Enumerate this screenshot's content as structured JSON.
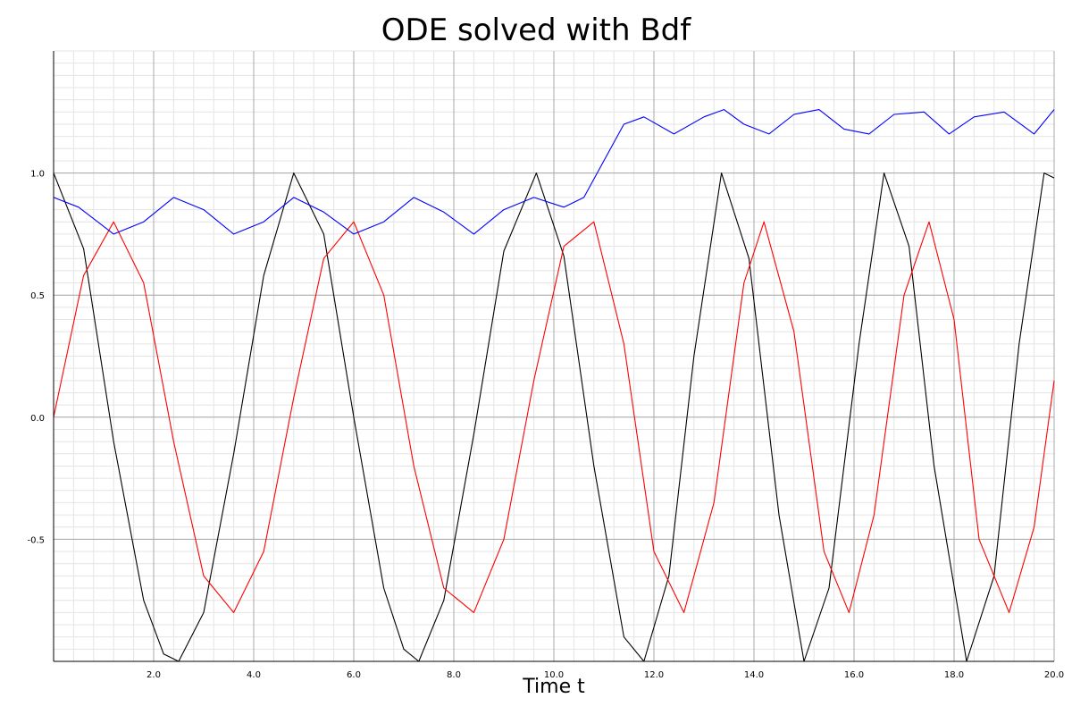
{
  "chart_data": {
    "type": "line",
    "title": "ODE solved with Bdf",
    "xlabel": "Time t",
    "ylabel": "",
    "xlim": [
      0,
      20
    ],
    "ylim": [
      -1,
      1.5
    ],
    "xticks": [
      2,
      4,
      6,
      8,
      10,
      12,
      14,
      16,
      18,
      20
    ],
    "xtick_labels": [
      "2.0",
      "4.0",
      "6.0",
      "8.0",
      "10.0",
      "12.0",
      "14.0",
      "16.0",
      "18.0",
      "20.0"
    ],
    "yticks": [
      -0.5,
      0,
      0.5,
      1
    ],
    "ytick_labels": [
      "-0.5",
      "0.0",
      "0.5",
      "1.0"
    ],
    "grid": true,
    "legend": "none",
    "series": [
      {
        "color": "#000000",
        "x": [
          0,
          0.6,
          1.2,
          1.8,
          2.2,
          2.5,
          3.0,
          3.6,
          4.2,
          4.8,
          5.4,
          6.0,
          6.6,
          7.0,
          7.3,
          7.8,
          8.4,
          9.0,
          9.65,
          10.2,
          10.8,
          11.4,
          11.8,
          12.3,
          12.8,
          13.35,
          13.9,
          14.5,
          15.0,
          15.5,
          16.1,
          16.6,
          17.1,
          17.6,
          18.25,
          18.8,
          19.3,
          19.8,
          20.0
        ],
        "y": [
          1.0,
          0.69,
          -0.1,
          -0.75,
          -0.97,
          -1.0,
          -0.8,
          -0.15,
          0.58,
          1.0,
          0.75,
          0.0,
          -0.7,
          -0.95,
          -1.0,
          -0.75,
          -0.07,
          0.68,
          1.0,
          0.66,
          -0.2,
          -0.9,
          -1.0,
          -0.65,
          0.25,
          1.0,
          0.65,
          -0.4,
          -1.0,
          -0.7,
          0.3,
          1.0,
          0.7,
          -0.2,
          -1.0,
          -0.65,
          0.3,
          1.0,
          0.98
        ]
      },
      {
        "color": "#ff0000",
        "x": [
          0,
          0.6,
          1.2,
          1.8,
          2.4,
          3.0,
          3.6,
          4.2,
          4.8,
          5.4,
          6.0,
          6.6,
          7.2,
          7.8,
          8.4,
          9.0,
          9.6,
          10.2,
          10.8,
          11.4,
          12.0,
          12.6,
          13.2,
          13.8,
          14.2,
          14.8,
          15.4,
          15.9,
          16.4,
          17.0,
          17.5,
          18.0,
          18.5,
          19.1,
          19.6,
          20.0
        ],
        "y": [
          0.0,
          0.58,
          0.8,
          0.55,
          -0.1,
          -0.65,
          -0.8,
          -0.55,
          0.08,
          0.65,
          0.8,
          0.5,
          -0.2,
          -0.7,
          -0.8,
          -0.5,
          0.15,
          0.7,
          0.8,
          0.3,
          -0.55,
          -0.8,
          -0.35,
          0.55,
          0.8,
          0.35,
          -0.55,
          -0.8,
          -0.4,
          0.5,
          0.8,
          0.4,
          -0.5,
          -0.8,
          -0.45,
          0.15
        ]
      },
      {
        "color": "#0000ff",
        "x": [
          0,
          0.5,
          1.2,
          1.8,
          2.4,
          3.0,
          3.6,
          4.2,
          4.8,
          5.4,
          6.0,
          6.6,
          7.2,
          7.8,
          8.4,
          9.0,
          9.6,
          10.2,
          10.6,
          11.0,
          11.4,
          11.8,
          12.4,
          13.0,
          13.4,
          13.8,
          14.3,
          14.8,
          15.3,
          15.8,
          16.3,
          16.8,
          17.4,
          17.9,
          18.4,
          19.0,
          19.6,
          20.0
        ],
        "y": [
          0.9,
          0.86,
          0.75,
          0.8,
          0.9,
          0.85,
          0.75,
          0.8,
          0.9,
          0.84,
          0.75,
          0.8,
          0.9,
          0.84,
          0.75,
          0.85,
          0.9,
          0.86,
          0.9,
          1.05,
          1.2,
          1.23,
          1.16,
          1.23,
          1.26,
          1.2,
          1.16,
          1.24,
          1.26,
          1.18,
          1.16,
          1.24,
          1.25,
          1.16,
          1.23,
          1.25,
          1.16,
          1.26
        ]
      }
    ]
  }
}
